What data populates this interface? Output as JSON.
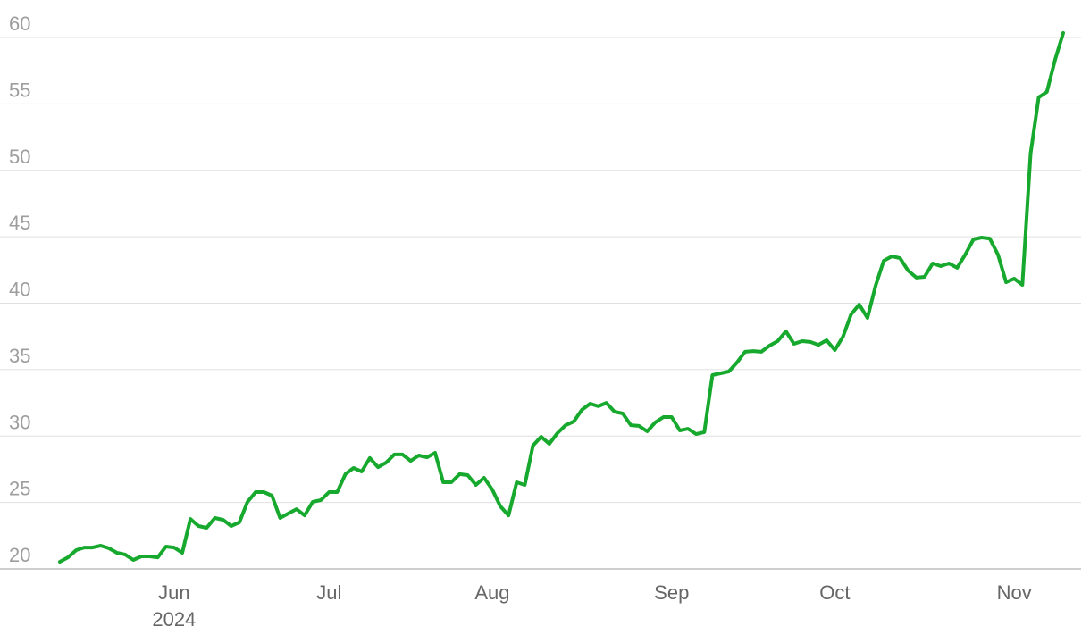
{
  "chart_data": {
    "type": "line",
    "categories": [
      null,
      null,
      null,
      null,
      null,
      null,
      null,
      null,
      null,
      null,
      null,
      null,
      null,
      null,
      "Jun",
      null,
      null,
      null,
      null,
      null,
      null,
      null,
      null,
      null,
      null,
      null,
      null,
      null,
      null,
      null,
      null,
      null,
      null,
      "Jul",
      null,
      null,
      null,
      null,
      null,
      null,
      null,
      null,
      null,
      null,
      null,
      null,
      null,
      null,
      null,
      null,
      null,
      null,
      null,
      "Aug",
      null,
      null,
      null,
      null,
      null,
      null,
      null,
      null,
      null,
      null,
      null,
      null,
      null,
      null,
      null,
      null,
      null,
      null,
      null,
      null,
      null,
      "Sep",
      null,
      null,
      null,
      null,
      null,
      null,
      null,
      null,
      null,
      null,
      null,
      null,
      null,
      null,
      null,
      null,
      null,
      null,
      null,
      "Oct",
      null,
      null,
      null,
      null,
      null,
      null,
      null,
      null,
      null,
      null,
      null,
      null,
      null,
      null,
      null,
      null,
      null,
      null,
      null,
      null,
      null,
      "Nov",
      null,
      null,
      null,
      null,
      null,
      null
    ],
    "year_label": "2024",
    "series": [
      {
        "color": "#17a92e",
        "values": [
          20.54,
          20.87,
          21.41,
          21.61,
          21.61,
          21.75,
          21.55,
          21.21,
          21.08,
          20.67,
          20.94,
          20.94,
          20.87,
          21.68,
          21.61,
          21.21,
          23.76,
          23.23,
          23.09,
          23.83,
          23.7,
          23.23,
          23.5,
          25.04,
          25.78,
          25.78,
          25.51,
          23.83,
          24.17,
          24.5,
          24.03,
          25.04,
          25.18,
          25.78,
          25.78,
          27.13,
          27.6,
          27.33,
          28.34,
          27.66,
          28.0,
          28.61,
          28.61,
          28.13,
          28.54,
          28.4,
          28.74,
          26.52,
          26.52,
          27.13,
          27.06,
          26.32,
          26.86,
          25.98,
          24.71,
          24.03,
          26.52,
          26.32,
          29.28,
          29.95,
          29.41,
          30.22,
          30.82,
          31.09,
          31.97,
          32.44,
          32.24,
          32.5,
          31.83,
          31.7,
          30.82,
          30.76,
          30.35,
          31.03,
          31.43,
          31.43,
          30.42,
          30.55,
          30.15,
          30.29,
          34.59,
          34.72,
          34.86,
          35.53,
          36.34,
          36.4,
          36.34,
          36.81,
          37.14,
          37.88,
          36.94,
          37.14,
          37.08,
          36.87,
          37.21,
          36.47,
          37.48,
          39.16,
          39.9,
          38.89,
          41.31,
          43.19,
          43.53,
          43.39,
          42.45,
          41.92,
          41.98,
          42.99,
          42.79,
          42.99,
          42.66,
          43.66,
          44.81,
          44.94,
          44.87,
          43.66,
          41.58,
          41.85,
          41.38,
          51.26,
          55.5,
          55.9,
          58.32,
          60.34
        ]
      }
    ],
    "ylim": [
      20,
      60
    ],
    "yticks": [
      20,
      25,
      30,
      35,
      40,
      45,
      50,
      55,
      60
    ],
    "grid": true
  }
}
